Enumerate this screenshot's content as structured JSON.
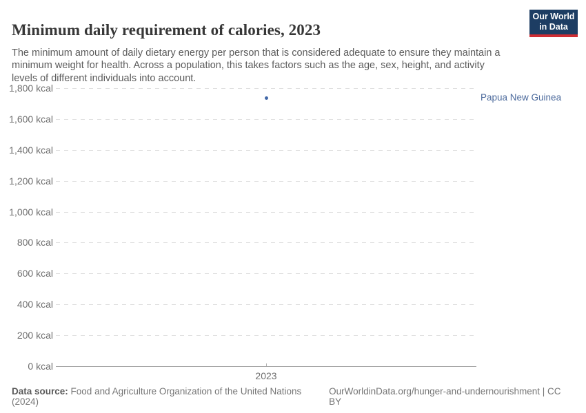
{
  "header": {
    "title": "Minimum daily requirement of calories, 2023",
    "subtitle": "The minimum amount of daily dietary energy per person that is considered adequate to ensure they maintain a minimum weight for health. Across a population, this takes factors such as the age, sex, height, and activity levels of different individuals into account.",
    "logo": {
      "line1": "Our World",
      "line2": "in Data",
      "bg_color": "#1d3d63",
      "stripe_color": "#cf2d33"
    }
  },
  "chart_data": {
    "type": "scatter",
    "title": "Minimum daily requirement of calories, 2023",
    "x": [
      2023
    ],
    "series": [
      {
        "name": "Papua New Guinea",
        "values": [
          1738
        ],
        "unit": "kcal",
        "color": "#4268a8"
      }
    ],
    "xlabel": "",
    "ylabel": "",
    "ylim": [
      0,
      1800
    ],
    "ytick_values": [
      0,
      200,
      400,
      600,
      800,
      1000,
      1200,
      1400,
      1600,
      1800
    ],
    "ytick_labels": [
      "0 kcal",
      "200 kcal",
      "400 kcal",
      "600 kcal",
      "800 kcal",
      "1,000 kcal",
      "1,200 kcal",
      "1,400 kcal",
      "1,600 kcal",
      "1,800 kcal"
    ],
    "xtick_labels": [
      "2023"
    ],
    "grid": "horizontal-dashed",
    "legend_position": "label-right-of-point"
  },
  "footer": {
    "datasource_label": "Data source:",
    "datasource_text": "Food and Agriculture Organization of the United Nations (2024)",
    "link_text": "OurWorldinData.org/hunger-and-undernourishment | CC BY"
  },
  "colors": {
    "accent_blue": "#4268a8",
    "entity_label_blue": "#4c6a9c",
    "axis_text": "#6e6e6e",
    "gridline": "#dedede",
    "axis_line": "#a3a3a3"
  }
}
